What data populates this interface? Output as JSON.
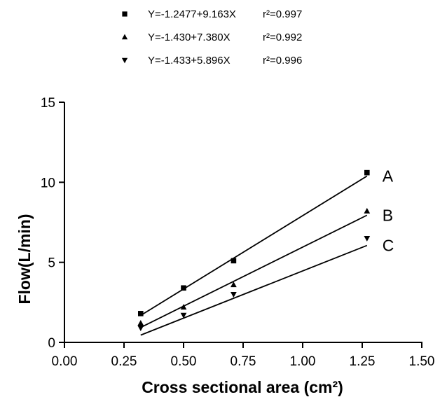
{
  "chart_data": {
    "type": "scatter",
    "xlabel": "Cross sectional area (cm²)",
    "ylabel": "Flow(L/min)",
    "xlim": [
      0,
      1.5
    ],
    "ylim": [
      0,
      15
    ],
    "xticks": [
      "0.00",
      "0.25",
      "0.50",
      "0.75",
      "1.00",
      "1.25",
      "1.50"
    ],
    "yticks": [
      "0",
      "5",
      "10",
      "15"
    ],
    "grid": false,
    "legend_position": "top",
    "series": [
      {
        "name": "A",
        "marker": "square",
        "color": "#000000",
        "x": [
          0.32,
          0.5,
          0.71,
          1.27
        ],
        "y": [
          1.8,
          3.4,
          5.1,
          10.6
        ],
        "fit": {
          "intercept": -1.2477,
          "slope": 9.163
        },
        "legend_text": "Y=-1.2477+9.163X",
        "r2_text": "r²=0.997"
      },
      {
        "name": "B",
        "marker": "triangle-up",
        "color": "#000000",
        "x": [
          0.32,
          0.5,
          0.71,
          1.27
        ],
        "y": [
          1.2,
          2.2,
          3.6,
          8.2
        ],
        "fit": {
          "intercept": -1.43,
          "slope": 7.38
        },
        "legend_text": "Y=-1.430+7.380X",
        "r2_text": "r²=0.992"
      },
      {
        "name": "C",
        "marker": "triangle-down",
        "color": "#000000",
        "x": [
          0.32,
          0.5,
          0.71,
          1.27
        ],
        "y": [
          0.9,
          1.7,
          3.0,
          6.5
        ],
        "fit": {
          "intercept": -1.433,
          "slope": 5.896
        },
        "legend_text": "Y=-1.433+5.896X",
        "r2_text": "r²=0.996"
      }
    ]
  }
}
